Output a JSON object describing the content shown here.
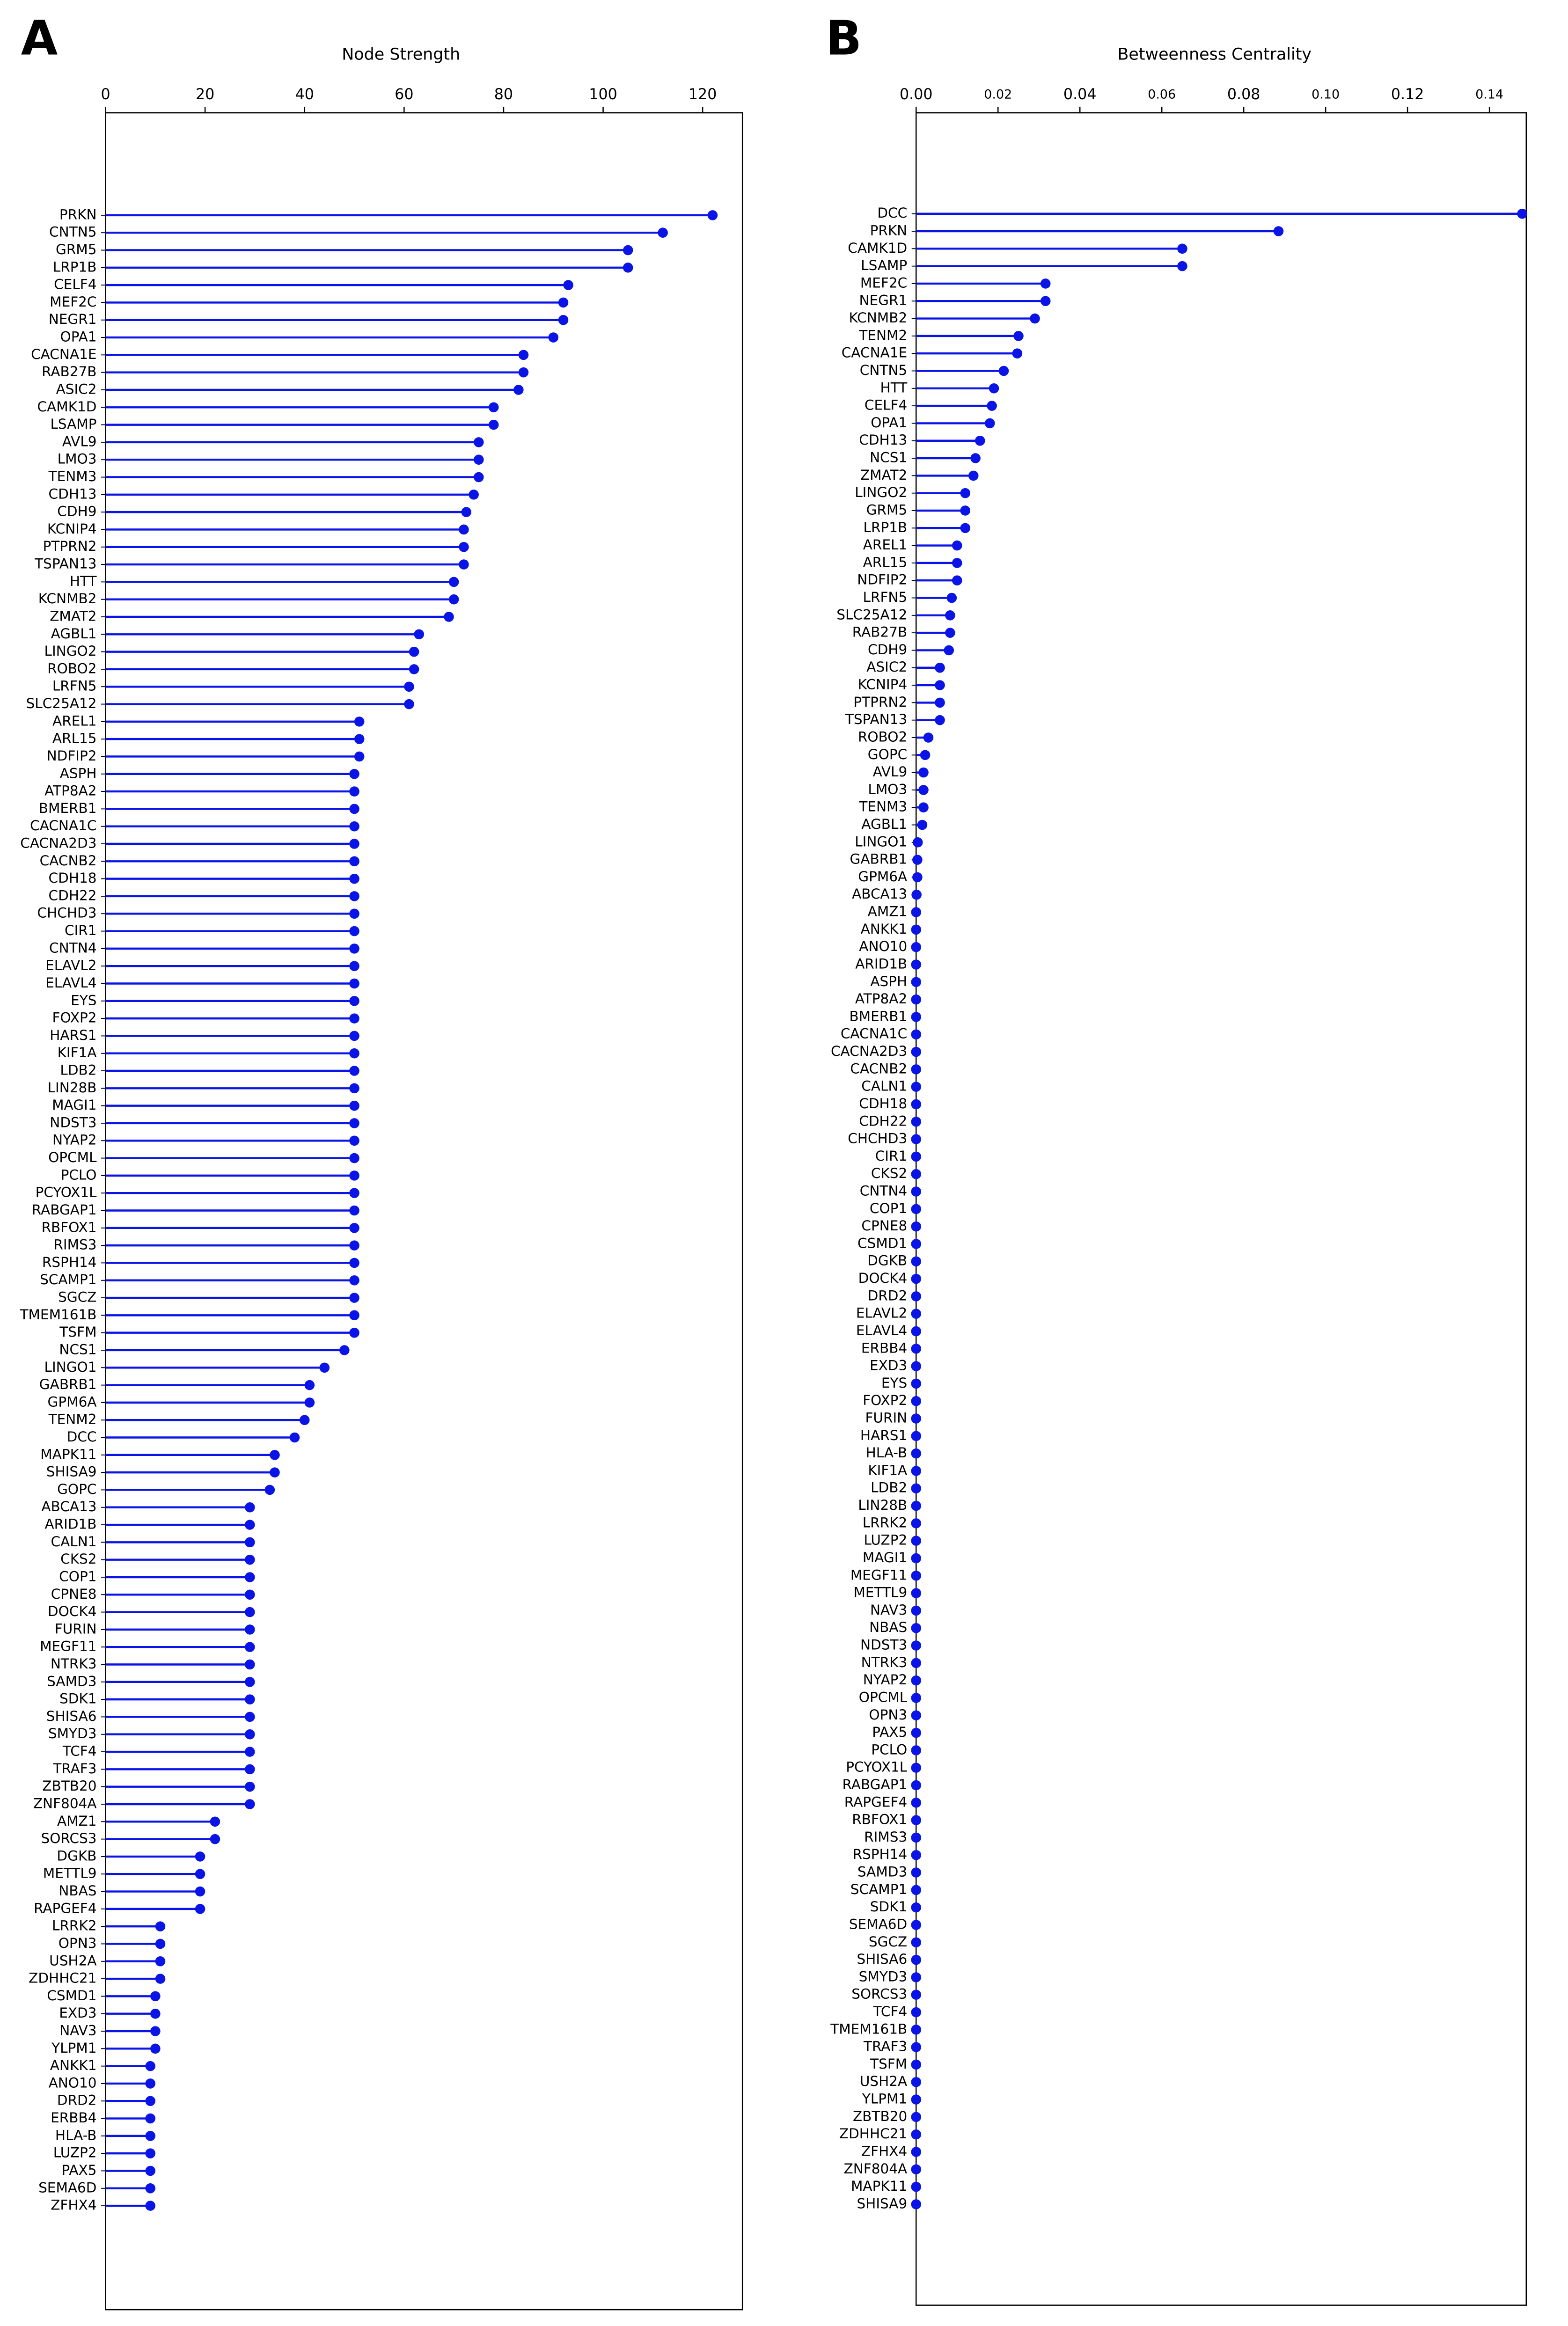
{
  "chart_data": [
    {
      "type": "lollipop",
      "label": "A",
      "title": "Node Strength",
      "color": "#0a14e6",
      "xlim": [
        0,
        128
      ],
      "xticks": [
        0,
        20,
        40,
        60,
        80,
        100,
        120
      ],
      "categories": [
        "PRKN",
        "CNTN5",
        "GRM5",
        "LRP1B",
        "CELF4",
        "MEF2C",
        "NEGR1",
        "OPA1",
        "CACNA1E",
        "RAB27B",
        "ASIC2",
        "CAMK1D",
        "LSAMP",
        "AVL9",
        "LMO3",
        "TENM3",
        "CDH13",
        "CDH9",
        "KCNIP4",
        "PTPRN2",
        "TSPAN13",
        "HTT",
        "KCNMB2",
        "ZMAT2",
        "AGBL1",
        "LINGO2",
        "ROBO2",
        "LRFN5",
        "SLC25A12",
        "AREL1",
        "ARL15",
        "NDFIP2",
        "ASPH",
        "ATP8A2",
        "BMERB1",
        "CACNA1C",
        "CACNA2D3",
        "CACNB2",
        "CDH18",
        "CDH22",
        "CHCHD3",
        "CIR1",
        "CNTN4",
        "ELAVL2",
        "ELAVL4",
        "EYS",
        "FOXP2",
        "HARS1",
        "KIF1A",
        "LDB2",
        "LIN28B",
        "MAGI1",
        "NDST3",
        "NYAP2",
        "OPCML",
        "PCLO",
        "PCYOX1L",
        "RABGAP1",
        "RBFOX1",
        "RIMS3",
        "RSPH14",
        "SCAMP1",
        "SGCZ",
        "TMEM161B",
        "TSFM",
        "NCS1",
        "LINGO1",
        "GABRB1",
        "GPM6A",
        "TENM2",
        "DCC",
        "MAPK11",
        "SHISA9",
        "GOPC",
        "ABCA13",
        "ARID1B",
        "CALN1",
        "CKS2",
        "COP1",
        "CPNE8",
        "DOCK4",
        "FURIN",
        "MEGF11",
        "NTRK3",
        "SAMD3",
        "SDK1",
        "SHISA6",
        "SMYD3",
        "TCF4",
        "TRAF3",
        "ZBTB20",
        "ZNF804A",
        "AMZ1",
        "SORCS3",
        "DGKB",
        "METTL9",
        "NBAS",
        "RAPGEF4",
        "LRRK2",
        "OPN3",
        "USH2A",
        "ZDHHC21",
        "CSMD1",
        "EXD3",
        "NAV3",
        "YLPM1",
        "ANKK1",
        "ANO10",
        "DRD2",
        "ERBB4",
        "HLA-B",
        "LUZP2",
        "PAX5",
        "SEMA6D",
        "ZFHX4"
      ],
      "values": [
        122,
        112,
        105,
        105,
        93,
        92,
        92,
        90,
        84,
        84,
        83,
        78,
        78,
        75,
        75,
        75,
        74,
        72.5,
        72,
        72,
        72,
        70,
        70,
        69,
        63,
        62,
        62,
        61,
        61,
        51,
        51,
        51,
        50,
        50,
        50,
        50,
        50,
        50,
        50,
        50,
        50,
        50,
        50,
        50,
        50,
        50,
        50,
        50,
        50,
        50,
        50,
        50,
        50,
        50,
        50,
        50,
        50,
        50,
        50,
        50,
        50,
        50,
        50,
        50,
        50,
        48,
        44,
        41,
        41,
        40,
        38,
        34,
        34,
        33,
        29,
        29,
        29,
        29,
        29,
        29,
        29,
        29,
        29,
        29,
        29,
        29,
        29,
        29,
        29,
        29,
        29,
        29,
        22,
        22,
        19,
        19,
        19,
        19,
        11,
        11,
        11,
        11,
        10,
        10,
        10,
        10,
        9,
        9,
        9,
        9,
        9,
        9,
        9,
        9,
        9
      ]
    },
    {
      "type": "lollipop",
      "label": "B",
      "title": "Betweenness Centrality",
      "color": "#0a14e6",
      "xlim": [
        0,
        0.149
      ],
      "xticks": [
        {
          "value": 0,
          "label": "0.00"
        },
        0.02,
        0.04,
        0.06,
        0.08,
        {
          "value": 0.1,
          "label": "0.10"
        },
        0.12,
        0.14
      ],
      "categories": [
        "DCC",
        "PRKN",
        "CAMK1D",
        "LSAMP",
        "MEF2C",
        "NEGR1",
        "KCNMB2",
        "TENM2",
        "CACNA1E",
        "CNTN5",
        "HTT",
        "CELF4",
        "OPA1",
        "CDH13",
        "NCS1",
        "ZMAT2",
        "LINGO2",
        "GRM5",
        "LRP1B",
        "AREL1",
        "ARL15",
        "NDFIP2",
        "LRFN5",
        "SLC25A12",
        "RAB27B",
        "CDH9",
        "ASIC2",
        "KCNIP4",
        "PTPRN2",
        "TSPAN13",
        "ROBO2",
        "GOPC",
        "AVL9",
        "LMO3",
        "TENM3",
        "AGBL1",
        "LINGO1",
        "GABRB1",
        "GPM6A",
        "ABCA13",
        "AMZ1",
        "ANKK1",
        "ANO10",
        "ARID1B",
        "ASPH",
        "ATP8A2",
        "BMERB1",
        "CACNA1C",
        "CACNA2D3",
        "CACNB2",
        "CALN1",
        "CDH18",
        "CDH22",
        "CHCHD3",
        "CIR1",
        "CKS2",
        "CNTN4",
        "COP1",
        "CPNE8",
        "CSMD1",
        "DGKB",
        "DOCK4",
        "DRD2",
        "ELAVL2",
        "ELAVL4",
        "ERBB4",
        "EXD3",
        "EYS",
        "FOXP2",
        "FURIN",
        "HARS1",
        "HLA-B",
        "KIF1A",
        "LDB2",
        "LIN28B",
        "LRRK2",
        "LUZP2",
        "MAGI1",
        "MEGF11",
        "METTL9",
        "NAV3",
        "NBAS",
        "NDST3",
        "NTRK3",
        "NYAP2",
        "OPCML",
        "OPN3",
        "PAX5",
        "PCLO",
        "PCYOX1L",
        "RABGAP1",
        "RAPGEF4",
        "RBFOX1",
        "RIMS3",
        "RSPH14",
        "SAMD3",
        "SCAMP1",
        "SDK1",
        "SEMA6D",
        "SGCZ",
        "SHISA6",
        "SMYD3",
        "SORCS3",
        "TCF4",
        "TMEM161B",
        "TRAF3",
        "TSFM",
        "USH2A",
        "YLPM1",
        "ZBTB20",
        "ZDHHC21",
        "ZFHX4",
        "ZNF804A",
        "MAPK11",
        "SHISA9"
      ],
      "values": [
        0.148,
        0.0885,
        0.065,
        0.065,
        0.0316,
        0.0316,
        0.029,
        0.025,
        0.0247,
        0.0214,
        0.019,
        0.0185,
        0.018,
        0.0156,
        0.0145,
        0.014,
        0.012,
        0.012,
        0.012,
        0.01,
        0.01,
        0.01,
        0.0087,
        0.0083,
        0.0083,
        0.008,
        0.0058,
        0.0058,
        0.0058,
        0.0058,
        0.003,
        0.0022,
        0.0018,
        0.0018,
        0.0018,
        0.0015,
        0.0004,
        0.0003,
        0.0003,
        0.0001,
        0,
        0,
        0,
        0,
        0,
        0,
        0,
        0,
        0,
        0,
        0,
        0,
        0,
        0,
        0,
        0,
        0,
        0,
        0,
        0,
        0,
        0,
        0,
        0,
        0,
        0,
        0,
        0,
        0,
        0,
        0,
        0,
        0,
        0,
        0,
        0,
        0,
        0,
        0,
        0,
        0,
        0,
        0,
        0,
        0,
        0,
        0,
        0,
        0,
        0,
        0,
        0,
        0,
        0,
        0,
        0,
        0,
        0,
        0,
        0,
        0,
        0,
        0,
        0,
        0,
        0,
        0,
        0,
        0,
        0,
        0,
        0,
        0,
        0,
        0
      ]
    }
  ]
}
